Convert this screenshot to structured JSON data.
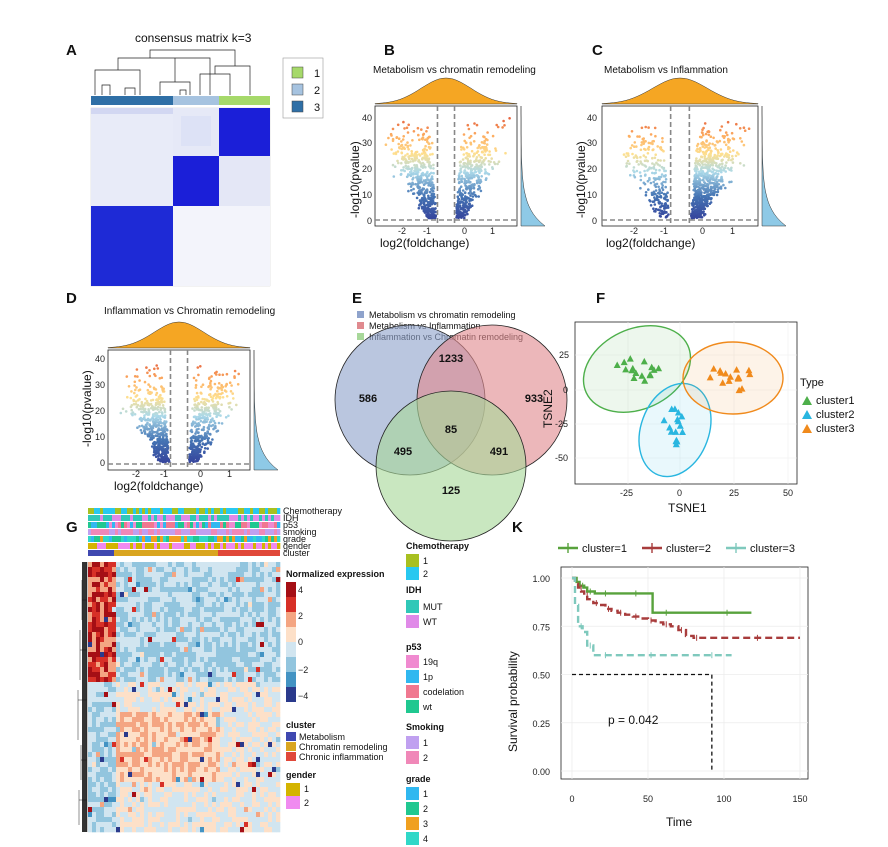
{
  "panels": {
    "A": {
      "label": "A",
      "title": "consensus matrix k=3",
      "legend": [
        {
          "label": "1",
          "color": "#a6d96a"
        },
        {
          "label": "2",
          "color": "#a6c3e0"
        },
        {
          "label": "3",
          "color": "#2f6fa6"
        }
      ]
    },
    "B": {
      "label": "B",
      "title": "Metabolism vs chromatin remodeling",
      "xlabel": "log2(foldchange)",
      "ylabel": "-log10(pvalue)",
      "xticks": [
        "-2",
        "-1",
        "0",
        "1"
      ],
      "yticks": [
        "0",
        "10",
        "20",
        "30",
        "40"
      ]
    },
    "C": {
      "label": "C",
      "title": "Metabolism vs Inflammation",
      "xlabel": "log2(foldchange)",
      "ylabel": "-log10(pvalue)",
      "xticks": [
        "-2",
        "-1",
        "0",
        "1"
      ],
      "yticks": [
        "0",
        "10",
        "20",
        "30",
        "40"
      ]
    },
    "D": {
      "label": "D",
      "title": "Inflammation vs Chromatin remodeling",
      "xlabel": "log2(foldchange)",
      "ylabel": "-log10(pvalue)",
      "xticks": [
        "-2",
        "-1",
        "0",
        "1"
      ],
      "yticks": [
        "0",
        "10",
        "20",
        "30",
        "40"
      ]
    },
    "E": {
      "label": "E",
      "legend": [
        {
          "label": "Metabolism vs chromatin remodeling",
          "color": "#8fa3cc"
        },
        {
          "label": "Metabolism vs Inflammation",
          "color": "#e08a8f"
        },
        {
          "label": "Inflammation vs Chromatin remodeling",
          "color": "#a8d89a"
        }
      ],
      "counts": {
        "only_a": "586",
        "a_b": "1233",
        "only_b": "933",
        "a_c": "495",
        "abc": "85",
        "b_c": "491",
        "only_c": "125"
      }
    },
    "F": {
      "label": "F",
      "xlabel": "TSNE1",
      "ylabel": "TSNE2",
      "xticks": [
        "-25",
        "0",
        "25",
        "50"
      ],
      "yticks": [
        "25",
        "0",
        "-25",
        "-50"
      ],
      "legend_title": "Type",
      "legend": [
        {
          "label": "cluster1",
          "color": "#4daf4a"
        },
        {
          "label": "cluster2",
          "color": "#29b6e0"
        },
        {
          "label": "cluster3",
          "color": "#f08a1c"
        }
      ]
    },
    "G": {
      "label": "G",
      "tracks": [
        "Chemotherapy",
        "IDH",
        "p53",
        "smoking",
        "grade",
        "gender",
        "cluster"
      ],
      "expression_title": "Normalized expression",
      "expression_ticks": [
        "4",
        "2",
        "0",
        "−2",
        "−4"
      ],
      "cluster_legend": {
        "title": "cluster",
        "items": [
          {
            "label": "Metabolism",
            "color": "#3f48b0"
          },
          {
            "label": "Chromatin remodeling",
            "color": "#d9a520"
          },
          {
            "label": "Chronic inflammation",
            "color": "#e0483a"
          }
        ]
      },
      "gender_legend": {
        "title": "gender",
        "items": [
          {
            "label": "1",
            "color": "#d4b400"
          },
          {
            "label": "2",
            "color": "#f08af0"
          }
        ]
      },
      "chemo_legend": {
        "title": "Chemotherapy",
        "items": [
          {
            "label": "1",
            "color": "#a8c020"
          },
          {
            "label": "2",
            "color": "#28c8f0"
          }
        ]
      },
      "idh_legend": {
        "title": "IDH",
        "items": [
          {
            "label": "MUT",
            "color": "#30c8b8"
          },
          {
            "label": "WT",
            "color": "#e08ae8"
          }
        ]
      },
      "p53_legend": {
        "title": "p53",
        "items": [
          {
            "label": "19q",
            "color": "#f08ad0"
          },
          {
            "label": "1p",
            "color": "#30b8f0"
          },
          {
            "label": "codelation",
            "color": "#f07890"
          },
          {
            "label": "wt",
            "color": "#20c890"
          }
        ]
      },
      "smoking_legend": {
        "title": "Smoking",
        "items": [
          {
            "label": "1",
            "color": "#c0a0f0"
          },
          {
            "label": "2",
            "color": "#f088b8"
          }
        ]
      },
      "grade_legend": {
        "title": "grade",
        "items": [
          {
            "label": "1",
            "color": "#30b8f0"
          },
          {
            "label": "2",
            "color": "#20c890"
          },
          {
            "label": "3",
            "color": "#f0a020"
          },
          {
            "label": "4",
            "color": "#30d8c8"
          }
        ]
      }
    },
    "K": {
      "label": "K",
      "p_value": "p = 0.042"
    }
  },
  "chart_data": [
    {
      "type": "line",
      "panel": "K",
      "xlabel": "Time",
      "ylabel": "Survival probability",
      "xlim": [
        0,
        150
      ],
      "ylim": [
        0,
        1
      ],
      "xticks": [
        "0",
        "50",
        "100",
        "150"
      ],
      "yticks": [
        "1.00",
        "0.75",
        "0.50",
        "0.25",
        "0.00"
      ],
      "median_line": {
        "x": 92,
        "y": 0.5
      },
      "series": [
        {
          "name": "cluster=1",
          "label": "cluster=1",
          "color": "#58a23c",
          "dash": "",
          "x": [
            0,
            3,
            5,
            8,
            10,
            15,
            20,
            30,
            40,
            53,
            60,
            80,
            100,
            118
          ],
          "y": [
            1.0,
            0.98,
            0.96,
            0.95,
            0.93,
            0.92,
            0.92,
            0.92,
            0.92,
            0.82,
            0.82,
            0.82,
            0.82,
            0.82
          ]
        },
        {
          "name": "cluster=2",
          "label": "cluster=2",
          "color": "#a83c3c",
          "dash": "7,4",
          "x": [
            0,
            2,
            4,
            6,
            8,
            10,
            14,
            18,
            22,
            26,
            30,
            35,
            40,
            45,
            50,
            55,
            60,
            65,
            70,
            75,
            80,
            100,
            120,
            150
          ],
          "y": [
            1.0,
            0.97,
            0.95,
            0.93,
            0.91,
            0.89,
            0.87,
            0.86,
            0.84,
            0.83,
            0.82,
            0.81,
            0.8,
            0.79,
            0.78,
            0.77,
            0.76,
            0.75,
            0.73,
            0.7,
            0.69,
            0.69,
            0.69,
            0.69
          ]
        },
        {
          "name": "cluster=3",
          "label": "cluster=3",
          "color": "#7fc9bd",
          "dash": "7,4",
          "x": [
            0,
            2,
            4,
            7,
            10,
            14,
            20,
            30,
            50,
            70,
            90,
            105
          ],
          "y": [
            1.0,
            0.86,
            0.75,
            0.72,
            0.65,
            0.6,
            0.6,
            0.6,
            0.6,
            0.6,
            0.6,
            0.6
          ]
        }
      ]
    }
  ]
}
